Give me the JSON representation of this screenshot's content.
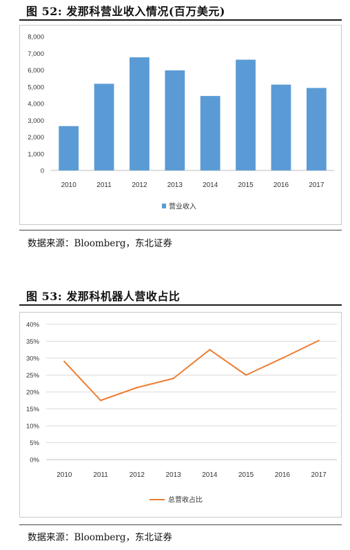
{
  "figure52": {
    "title": "图 52: 发那科营业收入情况(百万美元)",
    "source": "数据来源：Bloomberg，东北证券",
    "chart_data": {
      "type": "bar",
      "categories": [
        "2010",
        "2011",
        "2012",
        "2013",
        "2014",
        "2015",
        "2016",
        "2017"
      ],
      "series": [
        {
          "name": "营业收入",
          "values": [
            2650,
            5180,
            6760,
            5980,
            4450,
            6620,
            5130,
            4930
          ]
        }
      ],
      "ylim": [
        0,
        8000
      ],
      "yticks": [
        0,
        1000,
        2000,
        3000,
        4000,
        5000,
        6000,
        7000,
        8000
      ],
      "ytick_labels": [
        "0",
        "1,000",
        "2,000",
        "3,000",
        "4,000",
        "5,000",
        "6,000",
        "7,000",
        "8,000"
      ],
      "grid": false,
      "legend": "bottom",
      "color": "#5b9bd5"
    }
  },
  "figure53": {
    "title": "图 53: 发那科机器人营收占比",
    "source": "数据来源：Bloomberg，东北证券",
    "chart_data": {
      "type": "line",
      "categories": [
        "2010",
        "2011",
        "2012",
        "2013",
        "2014",
        "2015",
        "2016",
        "2017"
      ],
      "series": [
        {
          "name": "总营收占比",
          "values": [
            0.29,
            0.175,
            0.213,
            0.24,
            0.325,
            0.25,
            0.3,
            0.352
          ]
        }
      ],
      "ylim": [
        0,
        0.4
      ],
      "yticks": [
        0,
        0.05,
        0.1,
        0.15,
        0.2,
        0.25,
        0.3,
        0.35,
        0.4
      ],
      "ytick_labels": [
        "0%",
        "5%",
        "10%",
        "15%",
        "20%",
        "25%",
        "30%",
        "35%",
        "40%"
      ],
      "grid": true,
      "legend": "bottom",
      "color": "#ed7d31"
    }
  }
}
